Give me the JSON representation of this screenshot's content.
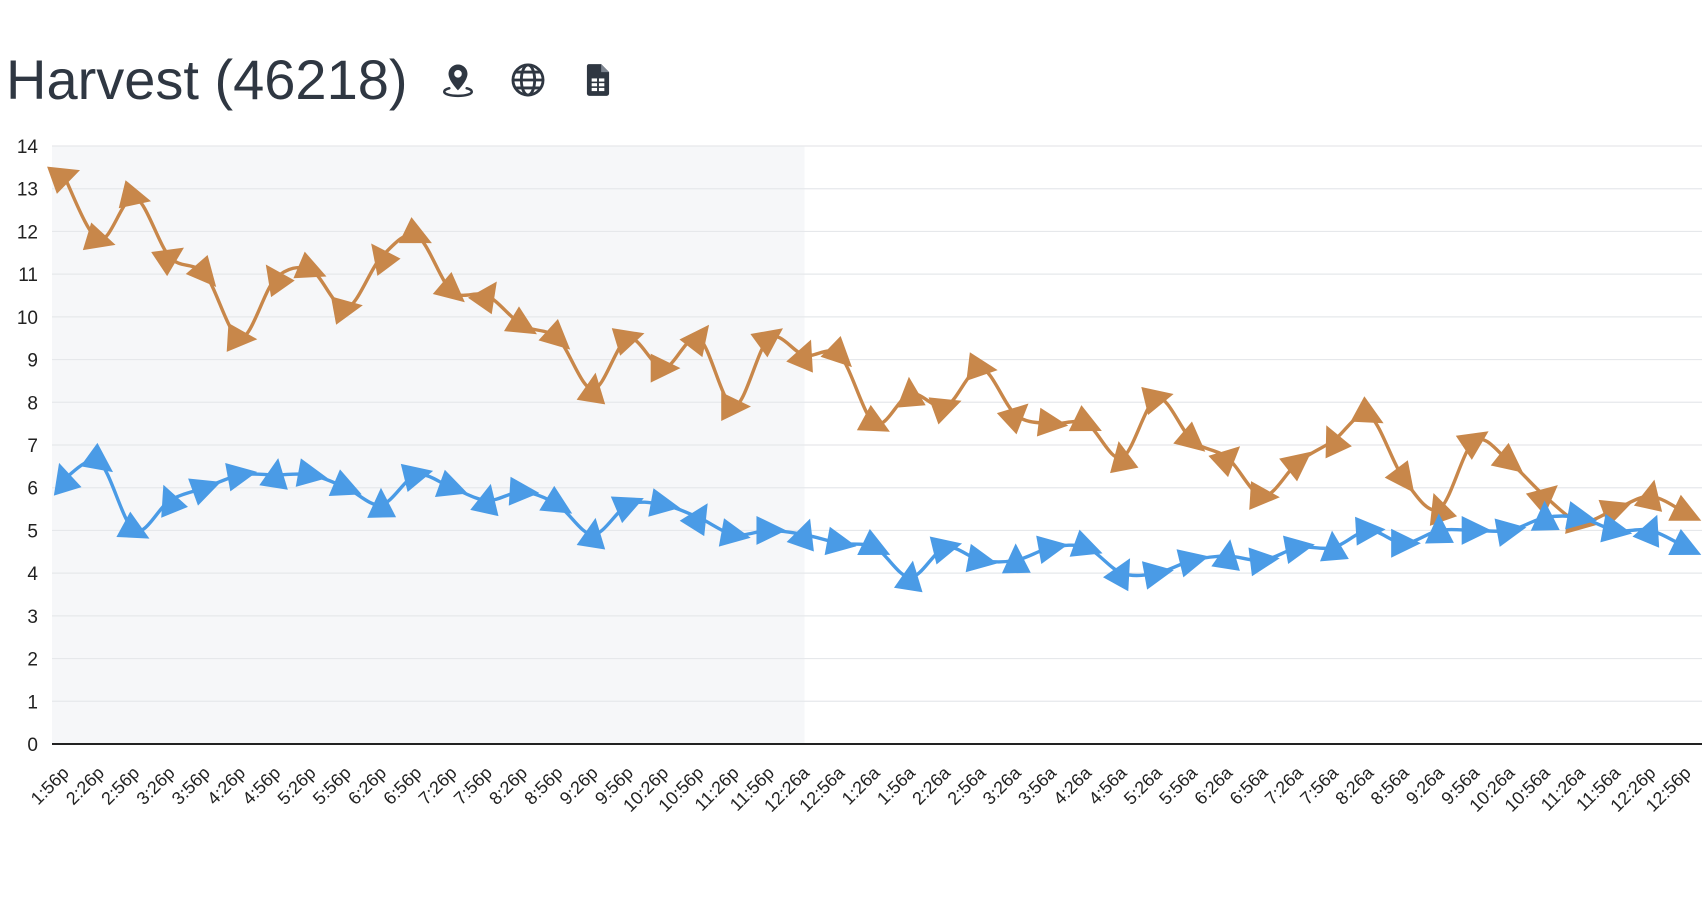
{
  "header": {
    "title": "Harvest (46218)",
    "icons": [
      "map-pin-icon",
      "globe-icon",
      "spreadsheet-icon"
    ]
  },
  "colors": {
    "series_orange": "#c8874a",
    "series_blue": "#4a9be6",
    "shade": "#f6f7f9",
    "grid": "#e6e8eb",
    "axis": "#222222"
  },
  "chart_data": {
    "type": "line",
    "title": "",
    "xlabel": "",
    "ylabel": "",
    "ylim": [
      0,
      14
    ],
    "yticks": [
      0,
      1,
      2,
      3,
      4,
      5,
      6,
      7,
      8,
      9,
      10,
      11,
      12,
      13,
      14
    ],
    "grid": true,
    "x": [
      "1:56p",
      "2:26p",
      "2:56p",
      "3:26p",
      "3:56p",
      "4:26p",
      "4:56p",
      "5:26p",
      "5:56p",
      "6:26p",
      "6:56p",
      "7:26p",
      "7:56p",
      "8:26p",
      "8:56p",
      "9:26p",
      "9:56p",
      "10:26p",
      "10:56p",
      "11:26p",
      "11:56p",
      "12:26a",
      "12:56a",
      "1:26a",
      "1:56a",
      "2:26a",
      "2:56a",
      "3:26a",
      "3:56a",
      "4:26a",
      "4:56a",
      "5:26a",
      "5:56a",
      "6:26a",
      "6:56a",
      "7:26a",
      "7:56a",
      "8:26a",
      "8:56a",
      "9:26a",
      "9:56a",
      "10:26a",
      "10:56a",
      "11:26a",
      "11:56a",
      "12:26p",
      "12:56p"
    ],
    "shaded_region": {
      "from": "1:56p",
      "to": "12:26a"
    },
    "series": [
      {
        "color": "#c8874a",
        "marker": "triangle",
        "values": [
          13.3,
          11.8,
          12.8,
          11.4,
          11.0,
          9.5,
          10.9,
          11.1,
          10.2,
          11.4,
          11.9,
          10.6,
          10.5,
          9.8,
          9.5,
          8.3,
          9.5,
          8.8,
          9.5,
          7.9,
          9.5,
          9.1,
          9.1,
          7.5,
          8.2,
          7.9,
          8.8,
          7.7,
          7.5,
          7.5,
          6.7,
          8.1,
          7.1,
          6.7,
          5.8,
          6.6,
          7.1,
          7.7,
          6.2,
          5.5,
          7.1,
          6.6,
          5.8,
          5.2,
          5.5,
          5.8,
          5.4
        ]
      },
      {
        "color": "#4a9be6",
        "marker": "triangle",
        "values": [
          6.2,
          6.6,
          5.0,
          5.7,
          6.0,
          6.3,
          6.3,
          6.3,
          6.0,
          5.6,
          6.3,
          6.0,
          5.7,
          5.9,
          5.6,
          4.9,
          5.6,
          5.6,
          5.3,
          4.9,
          5.0,
          4.9,
          4.7,
          4.6,
          3.9,
          4.6,
          4.3,
          4.3,
          4.6,
          4.6,
          4.0,
          4.0,
          4.3,
          4.4,
          4.3,
          4.6,
          4.6,
          5.0,
          4.7,
          5.0,
          5.0,
          5.0,
          5.3,
          5.3,
          5.0,
          5.0,
          4.6
        ]
      }
    ]
  }
}
